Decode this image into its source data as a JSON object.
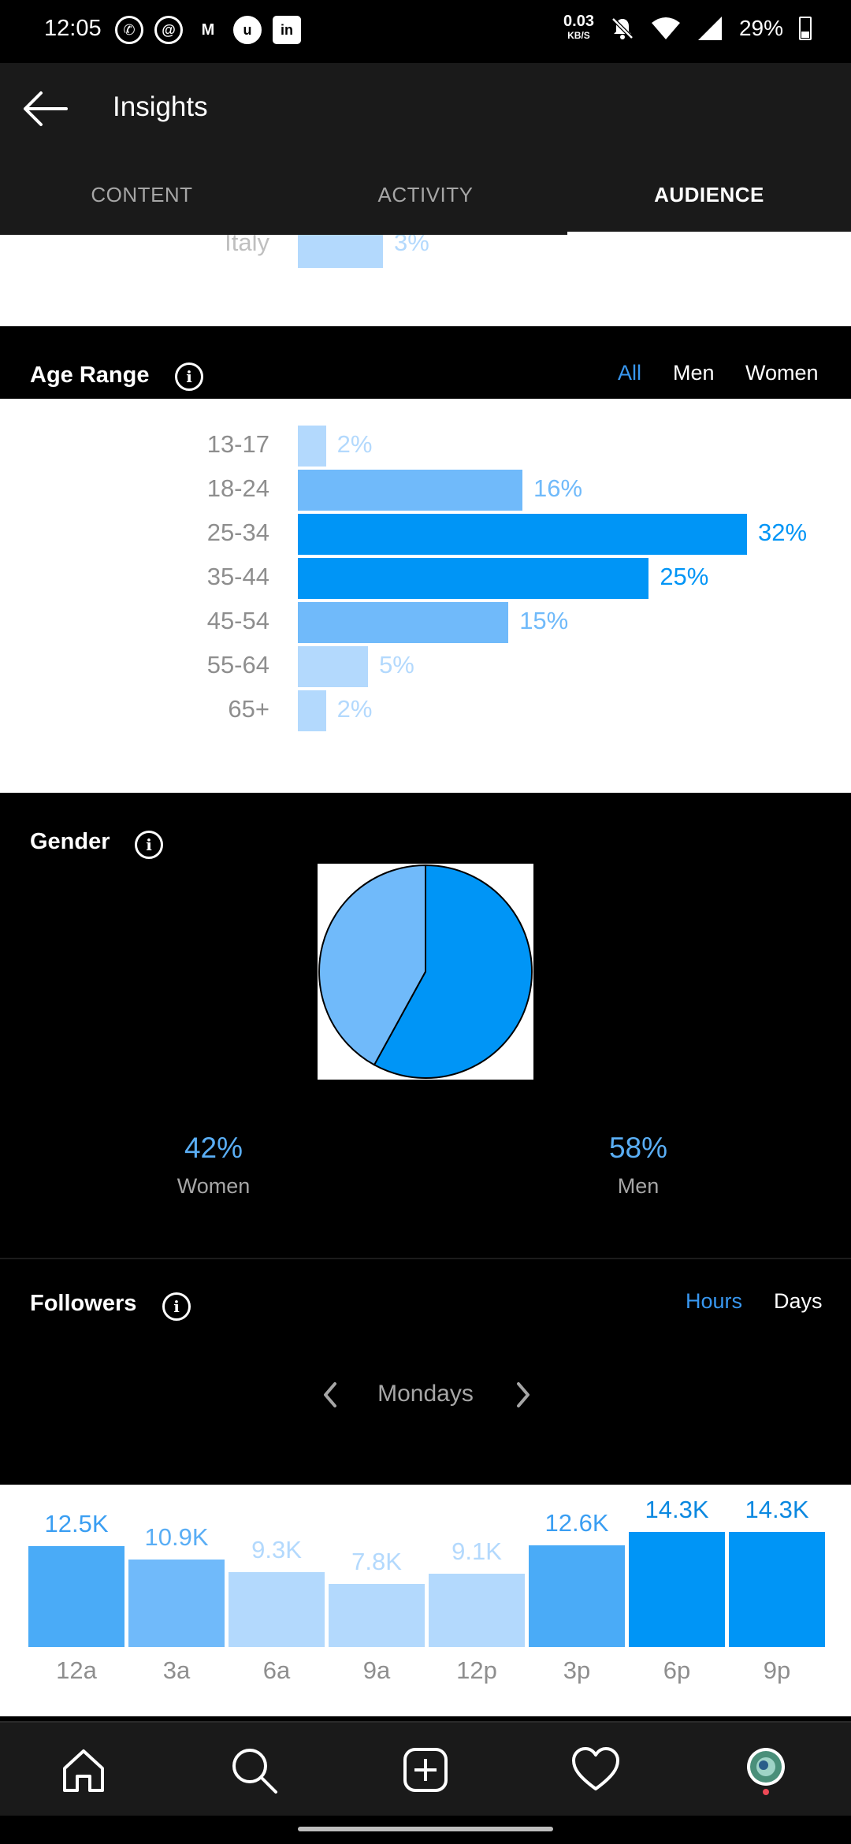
{
  "status_bar": {
    "time": "12:05",
    "left_icons": [
      "whatsapp-icon",
      "threads-icon",
      "medium-icon",
      "app-icon",
      "linkedin-icon"
    ],
    "net_speed": "0.03",
    "net_unit": "KB/S",
    "battery": "29%"
  },
  "header": {
    "title": "Insights"
  },
  "tabs": [
    {
      "label": "CONTENT"
    },
    {
      "label": "ACTIVITY"
    },
    {
      "label": "AUDIENCE",
      "active": true
    }
  ],
  "top_locations": {
    "partial_row": {
      "label": "Italy",
      "value": "3%"
    }
  },
  "age_range": {
    "title": "Age Range",
    "filters": [
      "All",
      "Men",
      "Women"
    ],
    "selected_filter": "All",
    "rows": [
      {
        "label": "13-17",
        "value": "2%"
      },
      {
        "label": "18-24",
        "value": "16%"
      },
      {
        "label": "25-34",
        "value": "32%"
      },
      {
        "label": "35-44",
        "value": "25%"
      },
      {
        "label": "45-54",
        "value": "15%"
      },
      {
        "label": "55-64",
        "value": "5%"
      },
      {
        "label": "65+",
        "value": "2%"
      }
    ]
  },
  "gender": {
    "title": "Gender",
    "women": {
      "value": "42%",
      "label": "Women"
    },
    "men": {
      "value": "58%",
      "label": "Men"
    }
  },
  "followers": {
    "title": "Followers",
    "filters": [
      "Hours",
      "Days"
    ],
    "selected_filter": "Hours",
    "day": "Mondays",
    "bars": [
      {
        "label": "12a",
        "value": "12.5K"
      },
      {
        "label": "3a",
        "value": "10.9K"
      },
      {
        "label": "6a",
        "value": "9.3K"
      },
      {
        "label": "9a",
        "value": "7.8K"
      },
      {
        "label": "12p",
        "value": "9.1K"
      },
      {
        "label": "3p",
        "value": "12.6K"
      },
      {
        "label": "6p",
        "value": "14.3K"
      },
      {
        "label": "9p",
        "value": "14.3K"
      }
    ]
  },
  "chart_data": [
    {
      "type": "bar",
      "title": "Age Range",
      "categories": [
        "13-17",
        "18-24",
        "25-34",
        "35-44",
        "45-54",
        "55-64",
        "65+"
      ],
      "values": [
        2,
        16,
        32,
        25,
        15,
        5,
        2
      ],
      "unit": "%"
    },
    {
      "type": "pie",
      "title": "Gender",
      "categories": [
        "Women",
        "Men"
      ],
      "values": [
        42,
        58
      ],
      "unit": "%"
    },
    {
      "type": "bar",
      "title": "Followers",
      "categories": [
        "12a",
        "3a",
        "6a",
        "9a",
        "12p",
        "3p",
        "6p",
        "9p"
      ],
      "values": [
        12.5,
        10.9,
        9.3,
        7.8,
        9.1,
        12.6,
        14.3,
        14.3
      ],
      "unit": "K"
    }
  ],
  "colors": {
    "accent": "#3897f0",
    "bar_strong": "#0095f6",
    "bar_mid": "#70bafa",
    "bar_light": "#b3d9fd",
    "women_slice": "#70bafa",
    "men_slice": "#0095f6"
  },
  "bottom_nav": [
    "home-icon",
    "search-icon",
    "add-post-icon",
    "heart-icon",
    "profile-avatar"
  ]
}
